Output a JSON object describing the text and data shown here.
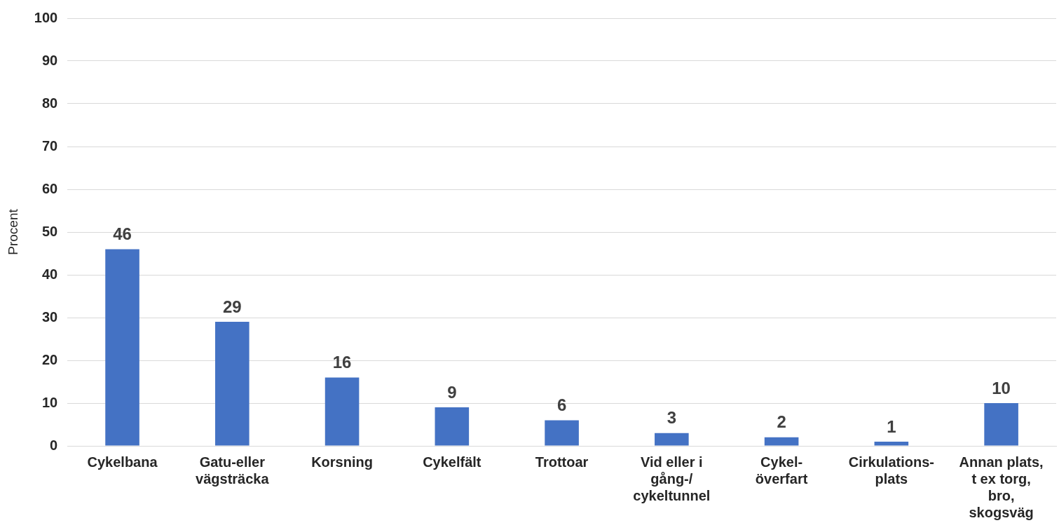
{
  "chart_data": {
    "type": "bar",
    "ylabel": "Procent",
    "categories": [
      "Cykelbana",
      "Gatu-eller\nvägsträcka",
      "Korsning",
      "Cykelfält",
      "Trottoar",
      "Vid eller i\ngång-/\ncykeltunnel",
      "Cykel-\növerfart",
      "Cirkulations-\nplats",
      "Annan plats,\nt ex torg,\nbro,\nskogsväg"
    ],
    "values": [
      46,
      29,
      16,
      9,
      6,
      3,
      2,
      1,
      10
    ],
    "color": "#4472c4",
    "ylim": [
      0,
      100
    ],
    "yticks": [
      0,
      10,
      20,
      30,
      40,
      50,
      60,
      70,
      80,
      90,
      100
    ],
    "grid": "y",
    "data_labels": true
  }
}
